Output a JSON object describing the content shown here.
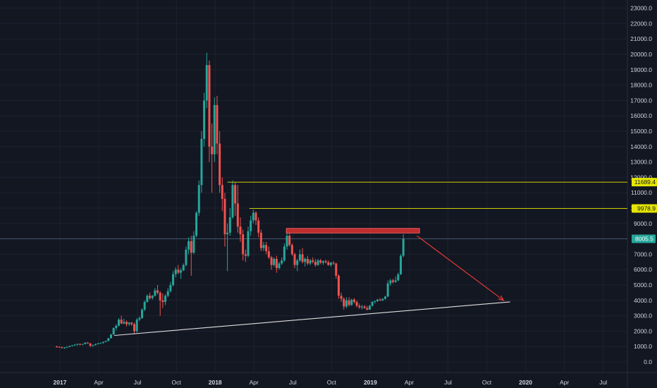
{
  "colors": {
    "background": "#131722",
    "grid": "#1e2230",
    "text": "#d1d4dc",
    "up": "#26a69a",
    "down": "#ef5350",
    "level_line": "#e6e600",
    "support_line": "#e0e0e0",
    "resistance_zone": "#d32f2f",
    "arrow": "#e53935",
    "price_tag": "#26a69a"
  },
  "chart_data": {
    "type": "candlestick",
    "y_axis": {
      "ticks": [
        "0.0",
        "1000.0",
        "2000.0",
        "3000.0",
        "4000.0",
        "5000.0",
        "6000.0",
        "7000.0",
        "8000.0",
        "9000.0",
        "10000.0",
        "11000.0",
        "12000.0",
        "13000.0",
        "14000.0",
        "15000.0",
        "16000.0",
        "17000.0",
        "18000.0",
        "19000.0",
        "20000.0",
        "21000.0",
        "22000.0",
        "23000.0"
      ],
      "ylim": [
        -700,
        23500
      ]
    },
    "x_axis": {
      "ticks": [
        {
          "label": "2017",
          "t": 0,
          "year": true
        },
        {
          "label": "Apr",
          "t": 3
        },
        {
          "label": "Jul",
          "t": 6
        },
        {
          "label": "Oct",
          "t": 9
        },
        {
          "label": "2018",
          "t": 12,
          "year": true
        },
        {
          "label": "Apr",
          "t": 15
        },
        {
          "label": "Jul",
          "t": 18
        },
        {
          "label": "Oct",
          "t": 21
        },
        {
          "label": "2019",
          "t": 24,
          "year": true
        },
        {
          "label": "Apr",
          "t": 27
        },
        {
          "label": "Jul",
          "t": 30
        },
        {
          "label": "Oct",
          "t": 33
        },
        {
          "label": "2020",
          "t": 36,
          "year": true
        },
        {
          "label": "Apr",
          "t": 39
        },
        {
          "label": "Jul",
          "t": 42
        }
      ],
      "unit": "months since 2017",
      "xlim": [
        -1.0,
        44.8
      ]
    },
    "candles_ohlc_key": "[month, open, high, low, close]",
    "candles": [
      [
        -0.25,
        1000,
        1050,
        930,
        980
      ],
      [
        -0.05,
        980,
        1010,
        920,
        950
      ],
      [
        0.15,
        950,
        1000,
        880,
        900
      ],
      [
        0.35,
        900,
        960,
        850,
        940
      ],
      [
        0.55,
        940,
        1000,
        900,
        980
      ],
      [
        0.75,
        980,
        1060,
        950,
        1040
      ],
      [
        0.95,
        1040,
        1100,
        1000,
        1080
      ],
      [
        1.15,
        1080,
        1150,
        1040,
        1120
      ],
      [
        1.35,
        1120,
        1190,
        1060,
        1170
      ],
      [
        1.55,
        1170,
        1200,
        1080,
        1120
      ],
      [
        1.75,
        1120,
        1180,
        1090,
        1160
      ],
      [
        1.95,
        1160,
        1280,
        1140,
        1250
      ],
      [
        2.15,
        1250,
        1290,
        1180,
        1200
      ],
      [
        2.35,
        1200,
        1230,
        950,
        1050
      ],
      [
        2.55,
        1050,
        1120,
        980,
        1090
      ],
      [
        2.75,
        1090,
        1180,
        1070,
        1160
      ],
      [
        2.95,
        1160,
        1230,
        1140,
        1210
      ],
      [
        3.15,
        1210,
        1260,
        1170,
        1230
      ],
      [
        3.35,
        1230,
        1320,
        1200,
        1300
      ],
      [
        3.55,
        1300,
        1380,
        1280,
        1360
      ],
      [
        3.75,
        1360,
        1560,
        1340,
        1540
      ],
      [
        3.95,
        1540,
        1820,
        1520,
        1780
      ],
      [
        4.15,
        1780,
        2250,
        1760,
        2200
      ],
      [
        4.35,
        2200,
        2450,
        2050,
        2350
      ],
      [
        4.55,
        2350,
        2850,
        2300,
        2750
      ],
      [
        4.75,
        2750,
        3000,
        2450,
        2500
      ],
      [
        4.95,
        2500,
        2800,
        2450,
        2600
      ],
      [
        5.15,
        2600,
        2700,
        2300,
        2450
      ],
      [
        5.35,
        2450,
        2600,
        2350,
        2550
      ],
      [
        5.55,
        2550,
        2600,
        2350,
        2450
      ],
      [
        5.75,
        2450,
        2550,
        1850,
        2000
      ],
      [
        5.95,
        2000,
        2850,
        1900,
        2750
      ],
      [
        6.15,
        2750,
        2950,
        2650,
        2850
      ],
      [
        6.35,
        2850,
        3480,
        2800,
        3400
      ],
      [
        6.55,
        3400,
        4000,
        3300,
        3900
      ],
      [
        6.75,
        3900,
        4400,
        3850,
        4300
      ],
      [
        6.95,
        4300,
        4500,
        4050,
        4150
      ],
      [
        7.15,
        4150,
        4350,
        4050,
        4300
      ],
      [
        7.35,
        4300,
        4800,
        4250,
        4650
      ],
      [
        7.55,
        4650,
        5000,
        4400,
        4500
      ],
      [
        7.75,
        4500,
        4600,
        3000,
        4000
      ],
      [
        7.95,
        4000,
        4450,
        3500,
        3900
      ],
      [
        8.15,
        3900,
        4400,
        3700,
        4300
      ],
      [
        8.35,
        4300,
        4800,
        4200,
        4600
      ],
      [
        8.55,
        4600,
        5200,
        4500,
        5000
      ],
      [
        8.75,
        5000,
        5900,
        4900,
        5700
      ],
      [
        8.95,
        5700,
        6150,
        5500,
        6000
      ],
      [
        9.15,
        6000,
        6300,
        5700,
        5800
      ],
      [
        9.35,
        5800,
        6100,
        5400,
        5950
      ],
      [
        9.55,
        5950,
        6400,
        5900,
        6300
      ],
      [
        9.75,
        6300,
        7500,
        6200,
        7300
      ],
      [
        9.95,
        7300,
        8100,
        7000,
        7850
      ],
      [
        10.15,
        7850,
        8200,
        5600,
        7100
      ],
      [
        10.35,
        7100,
        8500,
        7000,
        8200
      ],
      [
        10.55,
        8200,
        9800,
        8100,
        9700
      ],
      [
        10.75,
        9700,
        11800,
        9500,
        11500
      ],
      [
        10.95,
        11500,
        15000,
        11000,
        14500
      ],
      [
        11.15,
        14500,
        17500,
        14000,
        17000
      ],
      [
        11.35,
        17000,
        20100,
        16500,
        19300
      ],
      [
        11.55,
        19300,
        19600,
        13000,
        14000
      ],
      [
        11.75,
        14000,
        15500,
        11000,
        13500
      ],
      [
        11.95,
        13500,
        17200,
        13000,
        16700
      ],
      [
        12.15,
        16700,
        17300,
        13500,
        14200
      ],
      [
        12.35,
        14200,
        15000,
        11000,
        11500
      ],
      [
        12.55,
        11500,
        12000,
        9800,
        10600
      ],
      [
        12.75,
        10600,
        11000,
        7500,
        8300
      ],
      [
        12.95,
        8300,
        9000,
        5900,
        8400
      ],
      [
        13.15,
        8400,
        10000,
        8200,
        9400
      ],
      [
        13.35,
        9400,
        11800,
        9300,
        11500
      ],
      [
        13.55,
        11500,
        11700,
        9500,
        10300
      ],
      [
        13.75,
        10300,
        11500,
        8400,
        8800
      ],
      [
        13.95,
        8800,
        9400,
        7800,
        8300
      ],
      [
        14.15,
        8300,
        8600,
        6600,
        7000
      ],
      [
        14.35,
        7000,
        7300,
        6500,
        6900
      ],
      [
        14.55,
        6900,
        8800,
        6800,
        8500
      ],
      [
        14.75,
        8500,
        9500,
        8200,
        9200
      ],
      [
        14.95,
        9200,
        9900,
        9000,
        9700
      ],
      [
        15.15,
        9700,
        9800,
        8900,
        9200
      ],
      [
        15.35,
        9200,
        9400,
        8100,
        8400
      ],
      [
        15.55,
        8400,
        8600,
        7200,
        7400
      ],
      [
        15.75,
        7400,
        7800,
        7200,
        7600
      ],
      [
        15.95,
        7600,
        7800,
        7000,
        7200
      ],
      [
        16.15,
        7200,
        7500,
        6700,
        6800
      ],
      [
        16.35,
        6800,
        6900,
        6000,
        6300
      ],
      [
        16.55,
        6300,
        6800,
        6200,
        6700
      ],
      [
        16.75,
        6700,
        6900,
        5800,
        6100
      ],
      [
        16.95,
        6100,
        6500,
        6000,
        6400
      ],
      [
        17.15,
        6400,
        6800,
        6300,
        6600
      ],
      [
        17.35,
        6600,
        7700,
        6500,
        7500
      ],
      [
        17.55,
        7500,
        8500,
        7300,
        8200
      ],
      [
        17.75,
        8200,
        8400,
        7500,
        7600
      ],
      [
        17.95,
        7600,
        7700,
        6900,
        7000
      ],
      [
        18.15,
        7000,
        7100,
        6100,
        6300
      ],
      [
        18.35,
        6300,
        6700,
        5900,
        6600
      ],
      [
        18.55,
        6600,
        7300,
        6500,
        7000
      ],
      [
        18.75,
        7000,
        7400,
        6400,
        6500
      ],
      [
        18.95,
        6500,
        6800,
        6200,
        6700
      ],
      [
        19.15,
        6700,
        6900,
        6300,
        6400
      ],
      [
        19.35,
        6400,
        6700,
        6300,
        6600
      ],
      [
        19.55,
        6600,
        6800,
        6400,
        6500
      ],
      [
        19.75,
        6500,
        6700,
        6200,
        6300
      ],
      [
        19.95,
        6300,
        6700,
        6250,
        6600
      ],
      [
        20.15,
        6600,
        6700,
        6350,
        6450
      ],
      [
        20.35,
        6450,
        6600,
        6300,
        6550
      ],
      [
        20.55,
        6550,
        6650,
        6400,
        6480
      ],
      [
        20.75,
        6480,
        6600,
        6250,
        6300
      ],
      [
        20.95,
        6300,
        6500,
        6200,
        6450
      ],
      [
        21.15,
        6450,
        6550,
        6300,
        6400
      ],
      [
        21.35,
        6400,
        6450,
        5400,
        5600
      ],
      [
        21.55,
        5600,
        5700,
        4100,
        4300
      ],
      [
        21.75,
        4300,
        4500,
        3900,
        4100
      ],
      [
        21.95,
        4100,
        4200,
        3400,
        3600
      ],
      [
        22.15,
        3600,
        4200,
        3500,
        4000
      ],
      [
        22.35,
        4000,
        4200,
        3600,
        3700
      ],
      [
        22.55,
        3700,
        4100,
        3650,
        4050
      ],
      [
        22.75,
        4050,
        4150,
        3800,
        3900
      ],
      [
        22.95,
        3900,
        4000,
        3550,
        3650
      ],
      [
        23.15,
        3650,
        3800,
        3450,
        3550
      ],
      [
        23.35,
        3550,
        3700,
        3400,
        3600
      ],
      [
        23.55,
        3600,
        3700,
        3450,
        3500
      ],
      [
        23.75,
        3500,
        3650,
        3350,
        3400
      ],
      [
        23.95,
        3400,
        3700,
        3400,
        3650
      ],
      [
        24.15,
        3650,
        3950,
        3600,
        3900
      ],
      [
        24.35,
        3900,
        4000,
        3800,
        3950
      ],
      [
        24.55,
        3950,
        4100,
        3900,
        4050
      ],
      [
        24.75,
        4050,
        4150,
        3950,
        4000
      ],
      [
        24.95,
        4000,
        4150,
        3950,
        4100
      ],
      [
        25.15,
        4100,
        4300,
        4050,
        4250
      ],
      [
        25.35,
        4250,
        5300,
        4200,
        5100
      ],
      [
        25.55,
        5100,
        5400,
        4950,
        5300
      ],
      [
        25.75,
        5300,
        5400,
        5100,
        5200
      ],
      [
        25.95,
        5200,
        5550,
        5150,
        5300
      ],
      [
        26.15,
        5300,
        5800,
        5250,
        5700
      ],
      [
        26.35,
        5700,
        7000,
        5650,
        6900
      ],
      [
        26.55,
        6900,
        8300,
        6800,
        8000
      ]
    ],
    "horizontal_levels": [
      {
        "label": "11689.4",
        "value": 11689.4,
        "from_t": 12.95
      },
      {
        "label": "9978.9",
        "value": 9978.9,
        "from_t": 14.65
      }
    ],
    "current_price": {
      "label": "8005.5",
      "value": 8005.5
    },
    "resistance_zone": {
      "from_t": 17.5,
      "to_t": 27.8,
      "low": 8380,
      "high": 8680
    },
    "support_line": {
      "from": [
        4.2,
        1720
      ],
      "to": [
        34.8,
        3900
      ]
    },
    "projection_arrow": {
      "from": [
        27.6,
        8200
      ],
      "to": [
        34.3,
        4000
      ]
    }
  }
}
